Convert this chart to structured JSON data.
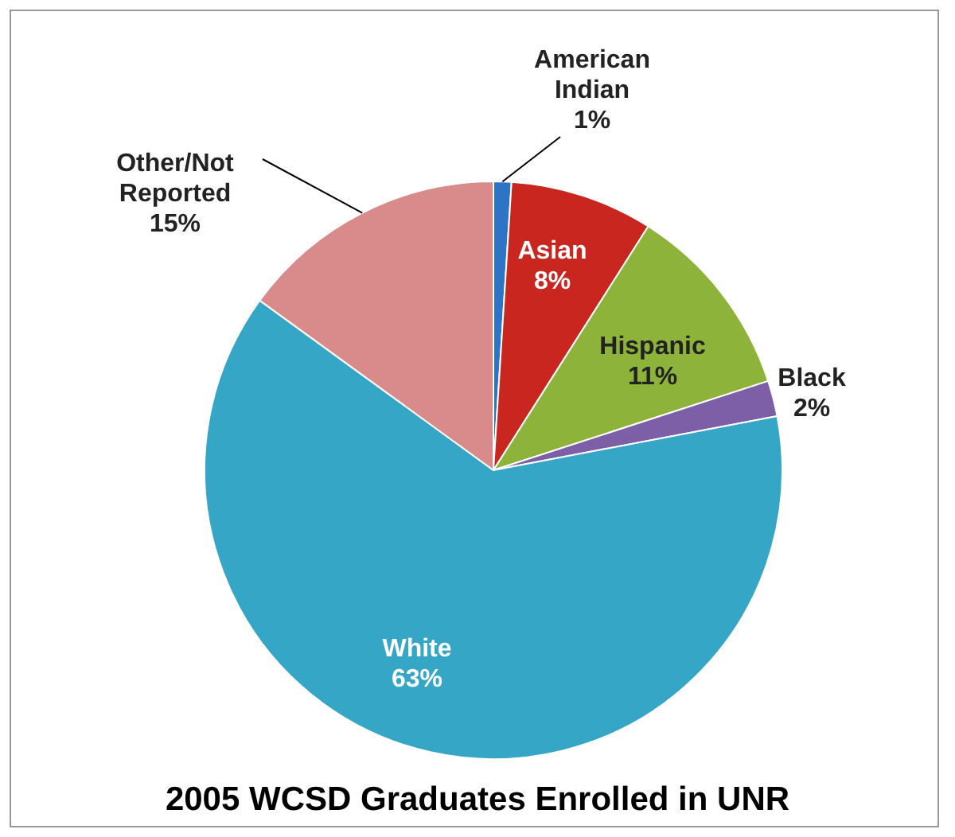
{
  "chart_data": {
    "type": "pie",
    "title": "2005 WCSD Graduates Enrolled in UNR",
    "categories": [
      "American Indian",
      "Asian",
      "Hispanic",
      "Black",
      "White",
      "Other/Not Reported"
    ],
    "values": [
      1,
      8,
      11,
      2,
      63,
      15
    ],
    "colors": [
      "#2e74c6",
      "#c9261f",
      "#8db33a",
      "#7d5fa8",
      "#36a6c6",
      "#d98b8b"
    ],
    "value_labels": [
      "1%",
      "8%",
      "11%",
      "2%",
      "63%",
      "15%"
    ],
    "legend": false
  }
}
